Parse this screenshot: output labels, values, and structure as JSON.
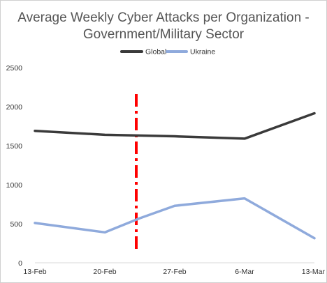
{
  "chart_data": {
    "type": "line",
    "title": "Average Weekly Cyber Attacks per Organization - Government/Military Sector",
    "title_lines": [
      "Average Weekly Cyber Attacks per Organization -",
      "Government/Military Sector"
    ],
    "categories": [
      "13-Feb",
      "20-Feb",
      "27-Feb",
      "6-Mar",
      "13-Mar"
    ],
    "series": [
      {
        "name": "Global",
        "color": "#3a3a3a",
        "points": [
          {
            "x": 0,
            "y": 1690
          },
          {
            "x": 1,
            "y": 1640
          },
          {
            "x": 2,
            "y": 1620
          },
          {
            "x": 3,
            "y": 1590
          },
          {
            "x": 4,
            "y": 1915
          }
        ]
      },
      {
        "name": "Ukraine",
        "color": "#8faadc",
        "points": [
          {
            "x": 0,
            "y": 510
          },
          {
            "x": 1,
            "y": 390
          },
          {
            "x": 1.5,
            "y": 570
          },
          {
            "x": 2,
            "y": 730
          },
          {
            "x": 3,
            "y": 825
          },
          {
            "x": 4,
            "y": 315
          }
        ]
      }
    ],
    "annotation": {
      "type": "vertical-dash-dot-line",
      "x": 1.45,
      "color": "#ff0000"
    },
    "yticks": [
      0,
      500,
      1000,
      1500,
      2000,
      2500
    ],
    "ylim": [
      0,
      2500
    ],
    "legend_position": "top",
    "grid": false,
    "xlabel": "",
    "ylabel": ""
  }
}
